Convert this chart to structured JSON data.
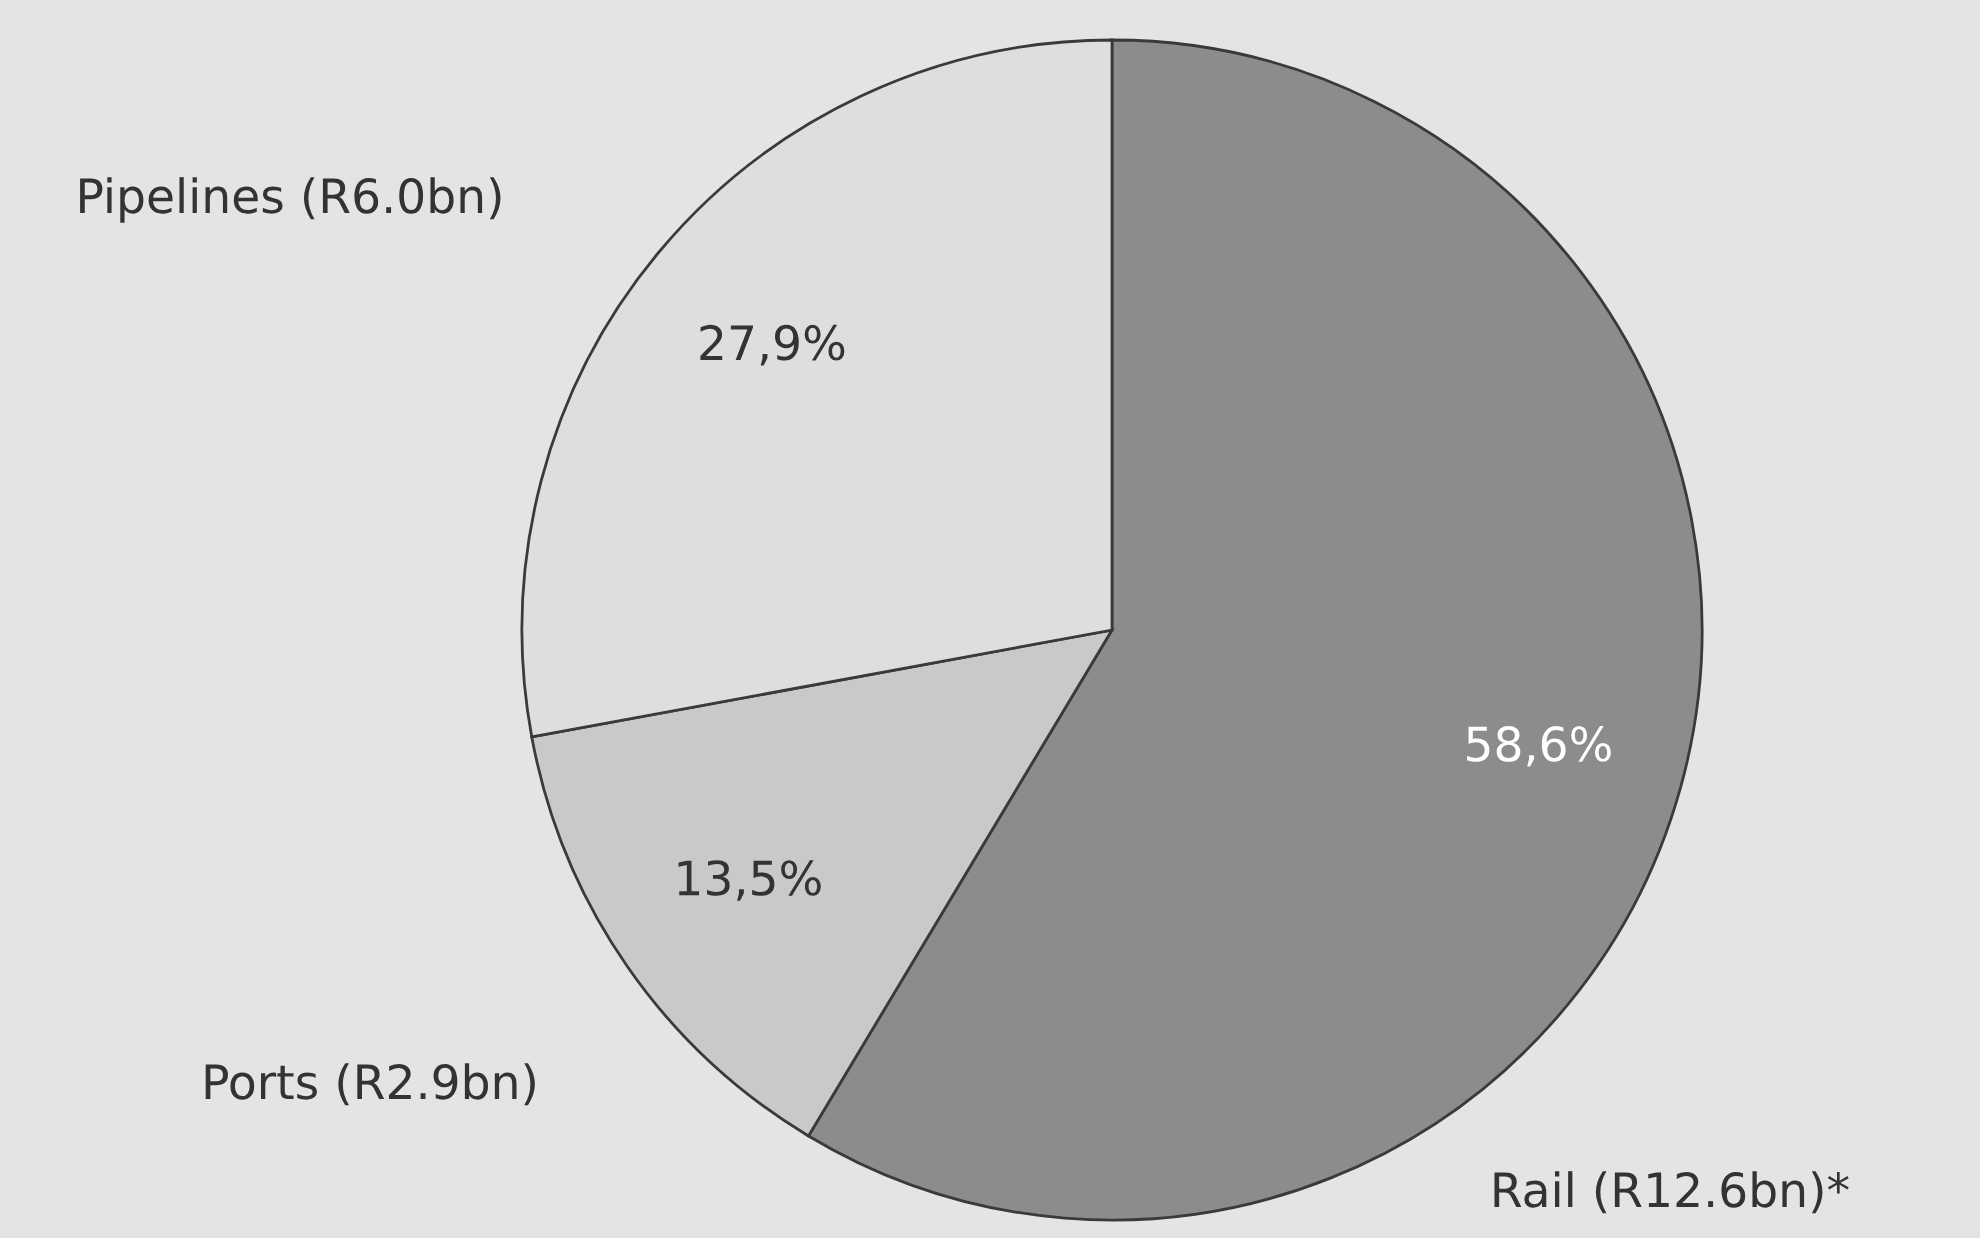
{
  "chart_data": {
    "type": "pie",
    "categories": [
      "Rail (R12.6bn)*",
      "Ports (R2.9bn)",
      "Pipelines (R6.0bn)"
    ],
    "values": [
      58.6,
      13.5,
      27.9
    ],
    "colors": [
      "#8c8c8c",
      "#c9c9c9",
      "#dedede"
    ],
    "value_labels": [
      "58,6%",
      "13,5%",
      "27,9%"
    ],
    "legend": false
  }
}
